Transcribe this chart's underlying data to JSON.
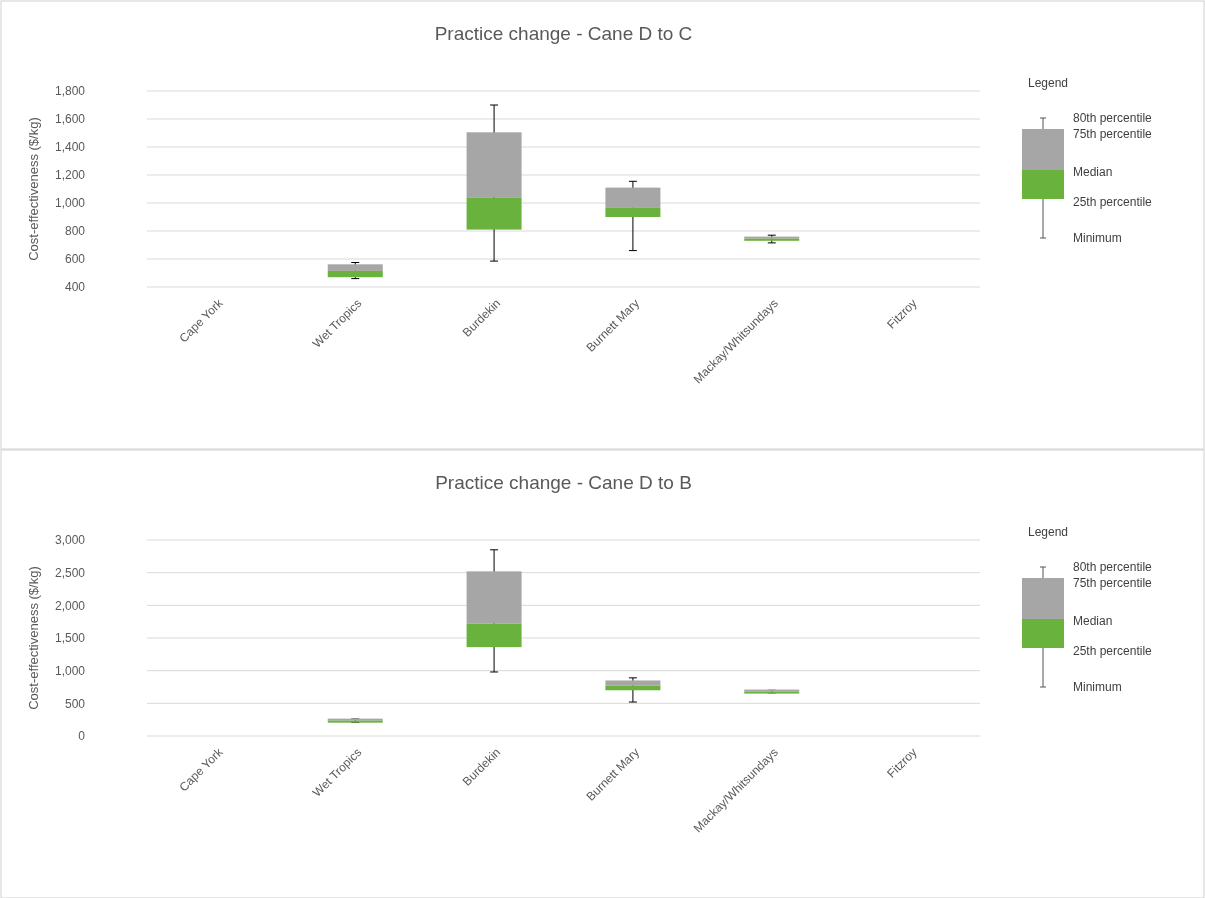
{
  "chart_data": [
    {
      "type": "box",
      "title": "Practice change - Cane D to C",
      "ylabel": "Cost-effectiveness ($/kg)",
      "legend_title": "Legend",
      "categories": [
        "Cape York",
        "Wet Tropics",
        "Burdekin",
        "Burnett Mary",
        "Mackay/Whitsundays",
        "Fitzroy"
      ],
      "series": [
        {
          "color": "#a6a6a6",
          "colors": [
            null,
            "#6ab23e",
            "#6ab23e",
            "#6ab23e",
            "#6ab23e",
            null
          ],
          "boxes": [
            null,
            {
              "low": 460,
              "q1": 470,
              "median": 515,
              "q3": 562,
              "high": 575
            },
            {
              "low": 585,
              "q1": 810,
              "median": 1040,
              "q3": 1505,
              "high": 1700
            },
            {
              "low": 660,
              "q1": 900,
              "median": 965,
              "q3": 1110,
              "high": 1155
            },
            {
              "low": 715,
              "q1": 730,
              "median": 745,
              "q3": 760,
              "high": 770
            },
            null
          ]
        }
      ],
      "ylim": [
        400,
        1800
      ],
      "yticks": [
        {
          "value": 400,
          "label": "400"
        },
        {
          "value": 600,
          "label": "600"
        },
        {
          "value": 800,
          "label": "800"
        },
        {
          "value": 1000,
          "label": "1,000"
        },
        {
          "value": 1200,
          "label": "1,200"
        },
        {
          "value": 1400,
          "label": "1,400"
        },
        {
          "value": 1600,
          "label": "1,600"
        },
        {
          "value": 1800,
          "label": "1,800"
        }
      ],
      "grid": "y",
      "annotations": [
        "80th percentile",
        "75th percentile",
        "Median",
        "25th percentile",
        "Minimum"
      ]
    },
    {
      "type": "box",
      "title": "Practice change - Cane D to B",
      "ylabel": "Cost-effectiveness ($/kg)",
      "legend_title": "Legend",
      "categories": [
        "Cape York",
        "Wet Tropics",
        "Burdekin",
        "Burnett Mary",
        "Mackay/Whitsundays",
        "Fitzroy"
      ],
      "series": [
        {
          "color": "#a6a6a6",
          "colors": [
            null,
            "#6ab23e",
            "#6ab23e",
            "#6ab23e",
            "#6ab23e",
            null
          ],
          "boxes": [
            null,
            {
              "low": 210,
              "q1": 220,
              "median": 235,
              "q3": 245,
              "high": 260
            },
            {
              "low": 980,
              "q1": 1360,
              "median": 1720,
              "q3": 2520,
              "high": 2850
            },
            {
              "low": 520,
              "q1": 700,
              "median": 770,
              "q3": 850,
              "high": 890
            },
            {
              "low": 660,
              "q1": 670,
              "median": 680,
              "q3": 690,
              "high": 700
            },
            null
          ]
        }
      ],
      "ylim": [
        0,
        3000
      ],
      "yticks": [
        {
          "value": 0,
          "label": "0"
        },
        {
          "value": 500,
          "label": "500"
        },
        {
          "value": 1000,
          "label": "1,000"
        },
        {
          "value": 1500,
          "label": "1,500"
        },
        {
          "value": 2000,
          "label": "2,000"
        },
        {
          "value": 2500,
          "label": "2,500"
        },
        {
          "value": 3000,
          "label": "3,000"
        }
      ],
      "grid": "y",
      "annotations": [
        "80th percentile",
        "75th percentile",
        "Median",
        "25th percentile",
        "Minimum"
      ]
    }
  ]
}
